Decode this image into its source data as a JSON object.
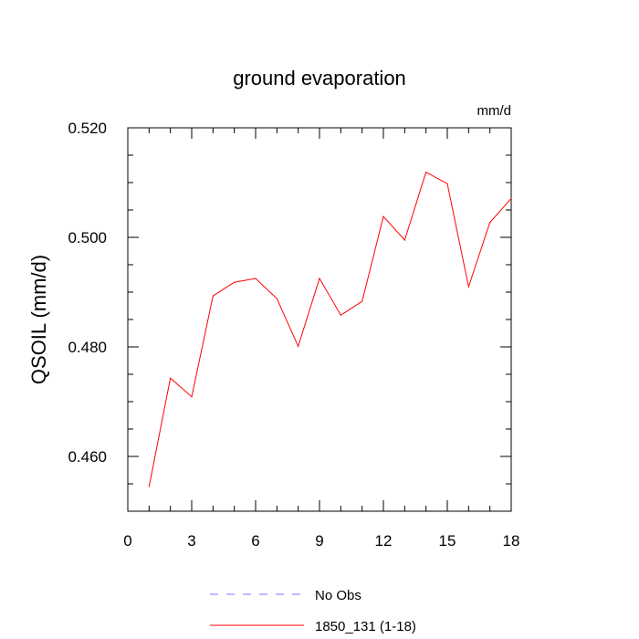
{
  "chart_data": {
    "type": "line",
    "title": "ground evaporation",
    "units_label": "mm/d",
    "ylabel": "QSOIL  (mm/d)",
    "xlabel": "",
    "xlim": [
      0,
      18
    ],
    "ylim": [
      0.45,
      0.52
    ],
    "x_ticks": [
      0,
      3,
      6,
      9,
      12,
      15,
      18
    ],
    "x_tick_labels": [
      "0",
      "3",
      "6",
      "9",
      "12",
      "15",
      "18"
    ],
    "y_ticks": [
      0.46,
      0.48,
      0.5,
      0.52
    ],
    "y_tick_labels": [
      "0.460",
      "0.480",
      "0.500",
      "0.520"
    ],
    "x_minor_step": 1,
    "y_minor_step": 0.005,
    "grid": false,
    "legend_placement": "bottom",
    "series": [
      {
        "name": "1850_131 (1-18)",
        "color": "#ff0000",
        "dash": "solid",
        "x": [
          1,
          2,
          3,
          4,
          5,
          6,
          7,
          8,
          9,
          10,
          11,
          12,
          13,
          14,
          15,
          16,
          17,
          18
        ],
        "values": [
          0.4545,
          0.4743,
          0.4709,
          0.4893,
          0.4918,
          0.4925,
          0.4888,
          0.4801,
          0.4925,
          0.4858,
          0.4883,
          0.5038,
          0.4995,
          0.5119,
          0.5098,
          0.491,
          0.5027,
          0.5071
        ]
      }
    ],
    "legend": [
      {
        "label": "No Obs",
        "color": "#7b7bff",
        "dash": "dashed"
      },
      {
        "label": "1850_131 (1-18)",
        "color": "#ff0000",
        "dash": "solid"
      }
    ]
  }
}
